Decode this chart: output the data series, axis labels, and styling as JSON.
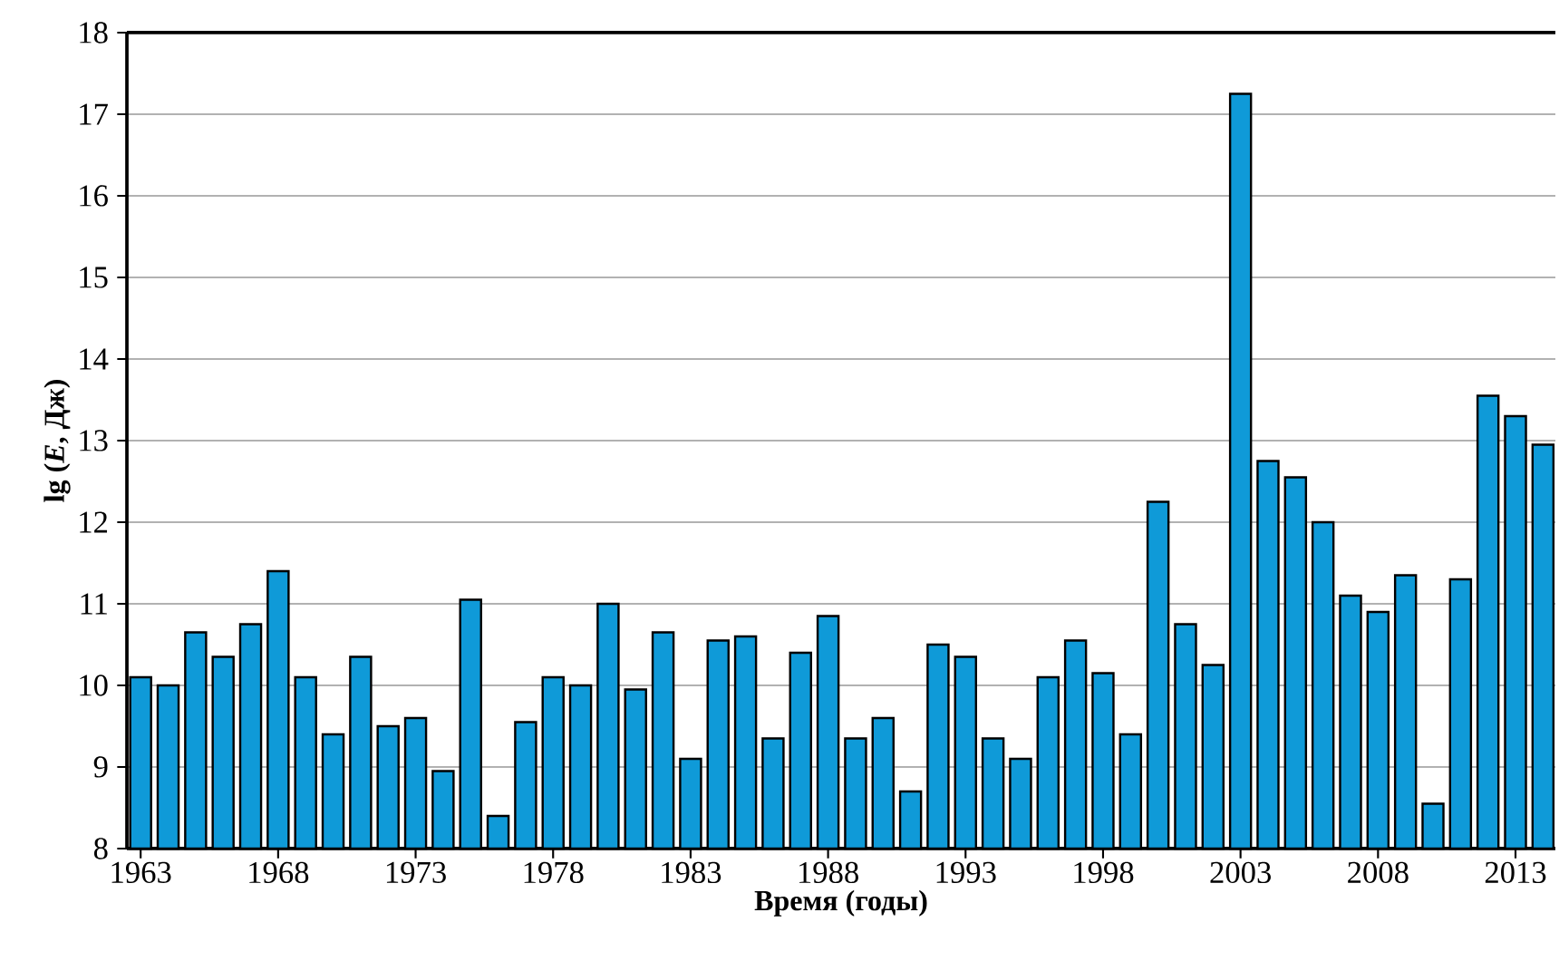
{
  "chart_data": {
    "type": "bar",
    "xlabel": "Время (годы)",
    "ylabel": "lg (*E*, Дж)",
    "categories": [
      "1963",
      null,
      null,
      null,
      null,
      "1968",
      null,
      null,
      null,
      null,
      "1973",
      null,
      null,
      null,
      null,
      "1978",
      null,
      null,
      null,
      null,
      "1983",
      null,
      null,
      null,
      null,
      "1988",
      null,
      null,
      null,
      null,
      "1993",
      null,
      null,
      null,
      null,
      "1998",
      null,
      null,
      null,
      null,
      "2003",
      null,
      null,
      null,
      null,
      "2008",
      null,
      null,
      null,
      null,
      "2013",
      null
    ],
    "values": [
      10.1,
      10.0,
      10.65,
      10.35,
      10.75,
      11.4,
      10.1,
      9.4,
      10.35,
      9.5,
      9.6,
      8.95,
      11.05,
      8.4,
      9.55,
      10.1,
      10.0,
      11.0,
      9.95,
      10.65,
      9.1,
      10.55,
      10.6,
      9.35,
      10.4,
      10.85,
      9.35,
      9.6,
      8.7,
      10.5,
      10.35,
      9.35,
      9.1,
      10.1,
      10.55,
      10.15,
      9.4,
      12.25,
      10.75,
      10.25,
      17.25,
      12.75,
      12.55,
      12.0,
      11.1,
      10.9,
      11.35,
      8.55,
      11.3,
      13.55,
      13.3,
      12.95
    ],
    "color": "#0f9ad8",
    "ylim": [
      8,
      18
    ],
    "yticks": [
      8,
      9,
      10,
      11,
      12,
      13,
      14,
      15,
      16,
      17,
      18
    ],
    "grid": "y"
  }
}
